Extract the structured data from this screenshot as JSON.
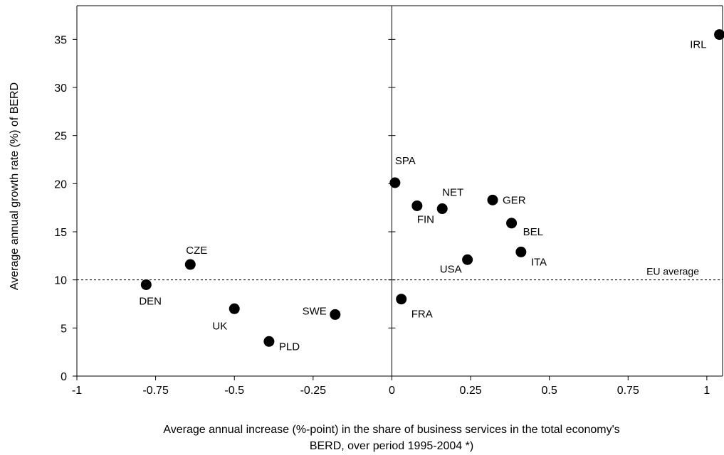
{
  "chart_data": {
    "type": "scatter",
    "xlabel_line1": "Average annual increase (%-point) in the share of business services in the total economy's",
    "xlabel_line2": "BERD, over period 1995-2004 *)",
    "ylabel": "Average annual growth rate (%) of BERD",
    "xlim": [
      -1,
      1.05
    ],
    "ylim": [
      0,
      38.5
    ],
    "xticks": [
      {
        "value": -1,
        "label": "-1"
      },
      {
        "value": -0.75,
        "label": "-0.75"
      },
      {
        "value": -0.5,
        "label": "-0.5"
      },
      {
        "value": -0.25,
        "label": "-0.25"
      },
      {
        "value": 0,
        "label": "0"
      },
      {
        "value": 0.25,
        "label": "0.25"
      },
      {
        "value": 0.5,
        "label": "0.5"
      },
      {
        "value": 0.75,
        "label": "0.75"
      },
      {
        "value": 1,
        "label": "1"
      }
    ],
    "yticks": [
      {
        "value": 0,
        "label": "0"
      },
      {
        "value": 5,
        "label": "5"
      },
      {
        "value": 10,
        "label": "10"
      },
      {
        "value": 15,
        "label": "15"
      },
      {
        "value": 20,
        "label": "20"
      },
      {
        "value": 25,
        "label": "25"
      },
      {
        "value": 30,
        "label": "30"
      },
      {
        "value": 35,
        "label": "35"
      }
    ],
    "reference_line": {
      "y": 10,
      "label": "EU average",
      "style": "dashed"
    },
    "points": [
      {
        "label": "IRL",
        "x": 1.04,
        "y": 35.5
      },
      {
        "label": "SPA",
        "x": 0.01,
        "y": 20.1
      },
      {
        "label": "FIN",
        "x": 0.08,
        "y": 17.7
      },
      {
        "label": "NET",
        "x": 0.16,
        "y": 17.4
      },
      {
        "label": "GER",
        "x": 0.32,
        "y": 18.3
      },
      {
        "label": "BEL",
        "x": 0.38,
        "y": 15.9
      },
      {
        "label": "ITA",
        "x": 0.41,
        "y": 12.9
      },
      {
        "label": "USA",
        "x": 0.24,
        "y": 12.1
      },
      {
        "label": "FRA",
        "x": 0.03,
        "y": 8.0
      },
      {
        "label": "CZE",
        "x": -0.64,
        "y": 11.6
      },
      {
        "label": "DEN",
        "x": -0.78,
        "y": 9.5
      },
      {
        "label": "UK",
        "x": -0.5,
        "y": 7.0
      },
      {
        "label": "PLD",
        "x": -0.39,
        "y": 3.6
      },
      {
        "label": "SWE",
        "x": -0.18,
        "y": 6.4
      }
    ],
    "grid": false
  }
}
